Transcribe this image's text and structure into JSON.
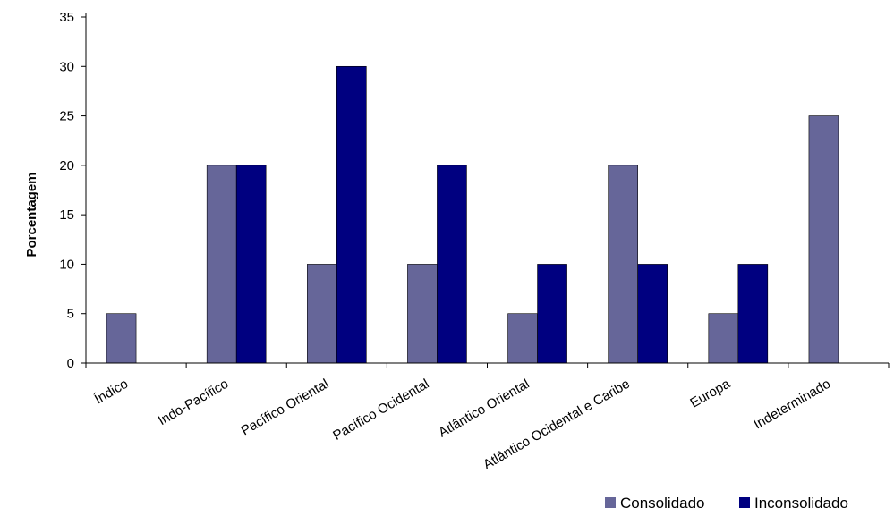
{
  "chart_data": {
    "type": "bar",
    "ylabel": "Porcentagem",
    "xlabel": "",
    "ylim": [
      0,
      35
    ],
    "yticks": [
      0,
      5,
      10,
      15,
      20,
      25,
      30,
      35
    ],
    "grid": false,
    "legend_position": "bottom-right",
    "categories": [
      "Índico",
      "Indo-Pacífico",
      "Pacífico Oriental",
      "Pacífico Ocidental",
      "Atlântico Oriental",
      "Atlântico Ocidental e Caribe",
      "Europa",
      "Indeterminado"
    ],
    "series": [
      {
        "name": "Consolidado",
        "color": "#666699",
        "values": [
          5,
          20,
          10,
          10,
          5,
          20,
          5,
          25
        ]
      },
      {
        "name": "Inconsolidado",
        "color": "#000080",
        "values": [
          0,
          20,
          30,
          20,
          10,
          10,
          10,
          0
        ]
      }
    ]
  }
}
